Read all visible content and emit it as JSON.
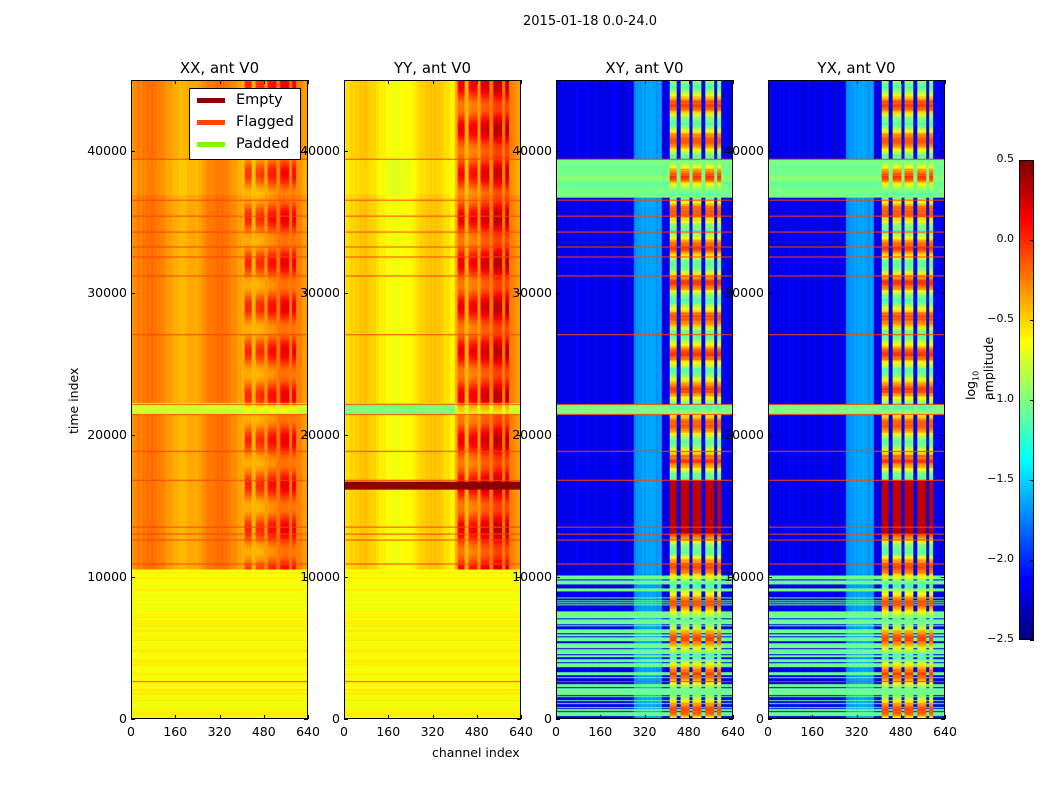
{
  "chart_data": {
    "type": "heatmap",
    "suptitle": "2015-01-18 0.0-24.0",
    "xlabel": "channel index",
    "ylabel": "time index",
    "xlim": [
      0,
      640
    ],
    "ylim": [
      0,
      45000
    ],
    "xticks": [
      "0",
      "160",
      "320",
      "480",
      "640"
    ],
    "yticks": [
      "0",
      "10000",
      "20000",
      "30000",
      "40000"
    ],
    "panels": [
      {
        "title": "XX, ant V0",
        "kind": "parallel"
      },
      {
        "title": "YY, ant V0",
        "kind": "parallel"
      },
      {
        "title": "XY, ant V0",
        "kind": "cross"
      },
      {
        "title": "YX, ant V0",
        "kind": "cross"
      }
    ],
    "legend": {
      "placement": "upper-right of first panel",
      "entries": [
        {
          "label": "Empty",
          "color": "#8b0000"
        },
        {
          "label": "Flagged",
          "color": "#ff4500"
        },
        {
          "label": "Padded",
          "color": "#7cfc00"
        }
      ]
    },
    "colorbar": {
      "label_main": "log",
      "label_sub": "10",
      "label_rest": " amplitude",
      "range": [
        -2.5,
        0.5
      ],
      "ticks": [
        "0.5",
        "0.0",
        "−0.5",
        "−1.0",
        "−1.5",
        "−2.0",
        "−2.5"
      ],
      "colormap": "jet"
    },
    "flagged_rows": [
      2600,
      10900,
      12600,
      13000,
      13500,
      16800,
      18900,
      21500,
      22200,
      27100,
      31300,
      32600,
      33300,
      34400,
      35500,
      36600,
      39500
    ]
  }
}
